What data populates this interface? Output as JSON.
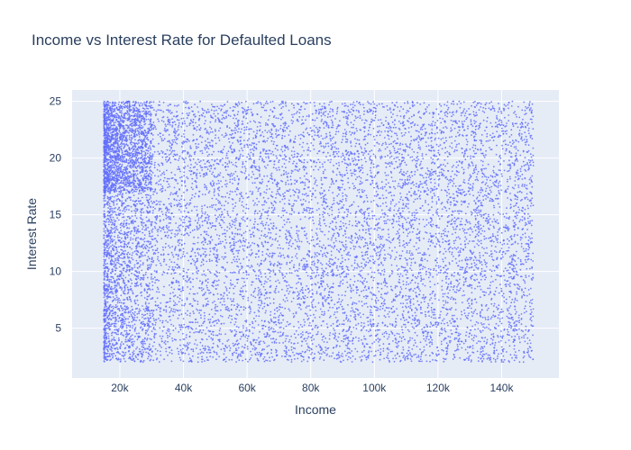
{
  "chart_data": {
    "type": "scatter",
    "title": "Income vs Interest Rate for Defaulted Loans",
    "xlabel": "Income",
    "ylabel": "Interest Rate",
    "xlim": [
      5000,
      158000
    ],
    "ylim": [
      0.6,
      26
    ],
    "x_ticks": [
      20000,
      40000,
      60000,
      80000,
      100000,
      120000,
      140000
    ],
    "x_tick_labels": [
      "20k",
      "40k",
      "60k",
      "80k",
      "100k",
      "120k",
      "140k"
    ],
    "y_ticks": [
      5,
      10,
      15,
      20,
      25
    ],
    "y_tick_labels": [
      "5",
      "10",
      "15",
      "20",
      "25"
    ],
    "grid": true,
    "legend": "none",
    "colors": {
      "marker": "#636efa",
      "plot_background": "#e5ecf6",
      "grid": "#ffffff",
      "text": "#2a3f5f"
    },
    "series": [
      {
        "x_range": [
          15000,
          150000
        ],
        "y_range": [
          2,
          25
        ],
        "n_points": 12000,
        "density": "higher at low income (15k-30k), roughly uniform elsewhere",
        "x": [
          15400,
          16200,
          17100,
          18300,
          19500,
          21000,
          23200,
          25800,
          28900,
          33400,
          38700,
          45200,
          52300,
          60800,
          68400,
          77100,
          85600,
          93800,
          101500,
          110200,
          118700,
          126300,
          134900,
          142100,
          149200
        ],
        "y": [
          22.1,
          3.4,
          14.8,
          9.2,
          19.6,
          6.1,
          24.3,
          11.7,
          2.8,
          17.5,
          8.4,
          21.9,
          13.3,
          4.7,
          23.6,
          15.9,
          7.2,
          20.4,
          10.6,
          2.5,
          18.8,
          12.1,
          24.7,
          5.9,
          16.3
        ]
      }
    ]
  }
}
